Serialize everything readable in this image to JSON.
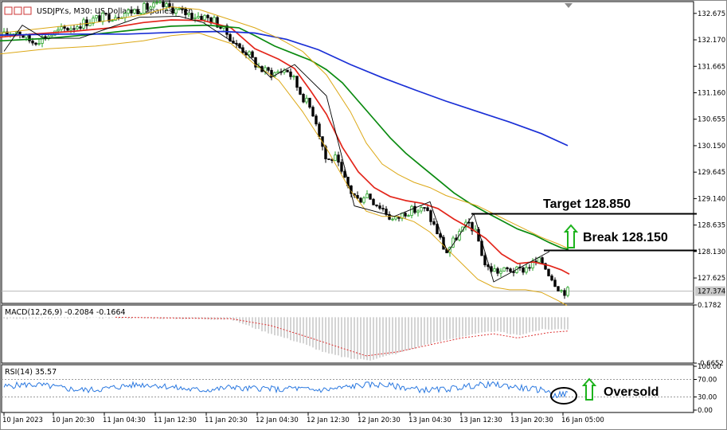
{
  "window": {
    "symbol_title": "USDJPY.s, M30:  US Dollar vs Japanese Yen"
  },
  "chart_data": [
    {
      "type": "candlestick",
      "panel": "price",
      "title": "USDJPY.s, M30:  US Dollar vs Japanese Yen",
      "ylim": [
        127.14,
        132.9
      ],
      "y_ticks": [
        "132.675",
        "132.170",
        "131.665",
        "131.160",
        "130.655",
        "130.150",
        "129.645",
        "129.140",
        "128.635",
        "128.130",
        "127.625"
      ],
      "current_price": "127.374",
      "x_ticks": [
        "10 Jan 2023",
        "10 Jan 20:30",
        "11 Jan 04:30",
        "11 Jan 12:30",
        "11 Jan 20:30",
        "12 Jan 04:30",
        "12 Jan 12:30",
        "12 Jan 20:30",
        "13 Jan 04:30",
        "13 Jan 12:30",
        "13 Jan 20:30",
        "16 Jan 05:00"
      ],
      "series": [
        {
          "name": "MA fast",
          "color": "#e3261b",
          "points": [
            [
              0,
              132.22
            ],
            [
              40,
              132.28
            ],
            [
              90,
              132.33
            ],
            [
              140,
              132.4
            ],
            [
              180,
              132.5
            ],
            [
              215,
              132.55
            ],
            [
              255,
              132.54
            ],
            [
              290,
              132.4
            ],
            [
              320,
              132.0
            ],
            [
              350,
              131.8
            ],
            [
              370,
              131.62
            ],
            [
              390,
              131.2
            ],
            [
              410,
              130.75
            ],
            [
              430,
              130.12
            ],
            [
              450,
              129.65
            ],
            [
              470,
              129.35
            ],
            [
              490,
              129.18
            ],
            [
              510,
              129.1
            ],
            [
              530,
              129.05
            ],
            [
              550,
              128.95
            ],
            [
              570,
              128.75
            ],
            [
              590,
              128.58
            ],
            [
              610,
              128.38
            ],
            [
              630,
              128.08
            ],
            [
              650,
              127.9
            ],
            [
              670,
              127.93
            ],
            [
              690,
              127.86
            ],
            [
              705,
              127.78
            ],
            [
              715,
              127.7
            ]
          ]
        },
        {
          "name": "MA medium",
          "color": "#0a8a10",
          "points": [
            [
              0,
              132.15
            ],
            [
              60,
              132.2
            ],
            [
              120,
              132.28
            ],
            [
              170,
              132.36
            ],
            [
              215,
              132.43
            ],
            [
              260,
              132.45
            ],
            [
              300,
              132.4
            ],
            [
              320,
              132.25
            ],
            [
              345,
              132.05
            ],
            [
              370,
              131.9
            ],
            [
              390,
              131.78
            ],
            [
              410,
              131.6
            ],
            [
              430,
              131.35
            ],
            [
              450,
              131.0
            ],
            [
              470,
              130.65
            ],
            [
              490,
              130.3
            ],
            [
              510,
              130.0
            ],
            [
              530,
              129.75
            ],
            [
              550,
              129.5
            ],
            [
              570,
              129.25
            ],
            [
              590,
              129.05
            ],
            [
              610,
              128.88
            ],
            [
              630,
              128.72
            ],
            [
              650,
              128.56
            ],
            [
              670,
              128.45
            ],
            [
              690,
              128.3
            ],
            [
              705,
              128.2
            ],
            [
              714,
              128.17
            ]
          ]
        },
        {
          "name": "MA slow",
          "color": "#1a2fd6",
          "points": [
            [
              0,
              132.26
            ],
            [
              80,
              132.28
            ],
            [
              160,
              132.28
            ],
            [
              230,
              132.32
            ],
            [
              280,
              132.33
            ],
            [
              320,
              132.3
            ],
            [
              360,
              132.18
            ],
            [
              400,
              131.98
            ],
            [
              440,
              131.7
            ],
            [
              480,
              131.45
            ],
            [
              520,
              131.22
            ],
            [
              560,
              131.0
            ],
            [
              600,
              130.8
            ],
            [
              640,
              130.6
            ],
            [
              680,
              130.38
            ],
            [
              713,
              130.15
            ]
          ]
        },
        {
          "name": "Bollinger upper",
          "color": "#dca816",
          "points": [
            [
              0,
              132.3
            ],
            [
              60,
              132.4
            ],
            [
              120,
              132.5
            ],
            [
              180,
              132.65
            ],
            [
              215,
              132.8
            ],
            [
              250,
              132.75
            ],
            [
              290,
              132.55
            ],
            [
              320,
              132.4
            ],
            [
              350,
              132.2
            ],
            [
              380,
              131.95
            ],
            [
              410,
              131.5
            ],
            [
              440,
              130.8
            ],
            [
              460,
              130.2
            ],
            [
              480,
              129.8
            ],
            [
              500,
              129.6
            ],
            [
              520,
              129.45
            ],
            [
              540,
              129.35
            ],
            [
              560,
              129.2
            ],
            [
              580,
              129.1
            ],
            [
              600,
              129.0
            ],
            [
              620,
              128.85
            ],
            [
              640,
              128.7
            ],
            [
              660,
              128.55
            ],
            [
              680,
              128.4
            ],
            [
              700,
              128.28
            ],
            [
              712,
              128.2
            ]
          ]
        },
        {
          "name": "Bollinger lower",
          "color": "#dca816",
          "points": [
            [
              0,
              131.9
            ],
            [
              60,
              132.0
            ],
            [
              120,
              132.05
            ],
            [
              180,
              132.15
            ],
            [
              215,
              132.25
            ],
            [
              250,
              132.3
            ],
            [
              290,
              132.1
            ],
            [
              320,
              131.7
            ],
            [
              350,
              131.4
            ],
            [
              380,
              130.8
            ],
            [
              410,
              130.1
            ],
            [
              440,
              129.3
            ],
            [
              460,
              128.9
            ],
            [
              480,
              128.8
            ],
            [
              500,
              128.8
            ],
            [
              520,
              128.7
            ],
            [
              540,
              128.5
            ],
            [
              560,
              128.2
            ],
            [
              580,
              127.9
            ],
            [
              600,
              127.6
            ],
            [
              620,
              127.45
            ],
            [
              640,
              127.4
            ],
            [
              660,
              127.4
            ],
            [
              680,
              127.35
            ],
            [
              700,
              127.2
            ],
            [
              712,
              127.1
            ]
          ]
        }
      ],
      "annotations": [
        {
          "text": "Target 128.850",
          "level": 128.85
        },
        {
          "text": "Break 128.150",
          "level": 128.15
        }
      ]
    },
    {
      "type": "histogram",
      "panel": "macd",
      "title": "MACD(12,26,9) -0.2084 -0.1664",
      "ylim": [
        -0.6652,
        0.1782
      ],
      "y_ticks": [
        "0.1782",
        "-0.6652"
      ]
    },
    {
      "type": "line",
      "panel": "rsi",
      "title": "RSI(14) 35.57",
      "ylim": [
        0,
        100
      ],
      "y_ticks": [
        "100.00",
        "70.00",
        "30.00",
        "0.00"
      ],
      "levels": [
        70,
        30
      ],
      "annotations": [
        {
          "text": "Oversold"
        }
      ]
    }
  ],
  "colors": {
    "bull": "#22a022",
    "bear": "#000000",
    "ma_fast": "#e3261b",
    "ma_medium": "#0a8a10",
    "ma_slow": "#1a2fd6",
    "bollinger": "#dca816",
    "macd_hist": "#a9a9a9",
    "macd_signal": "#d33",
    "rsi": "#2a78e0",
    "arrow": "#1db31d"
  }
}
